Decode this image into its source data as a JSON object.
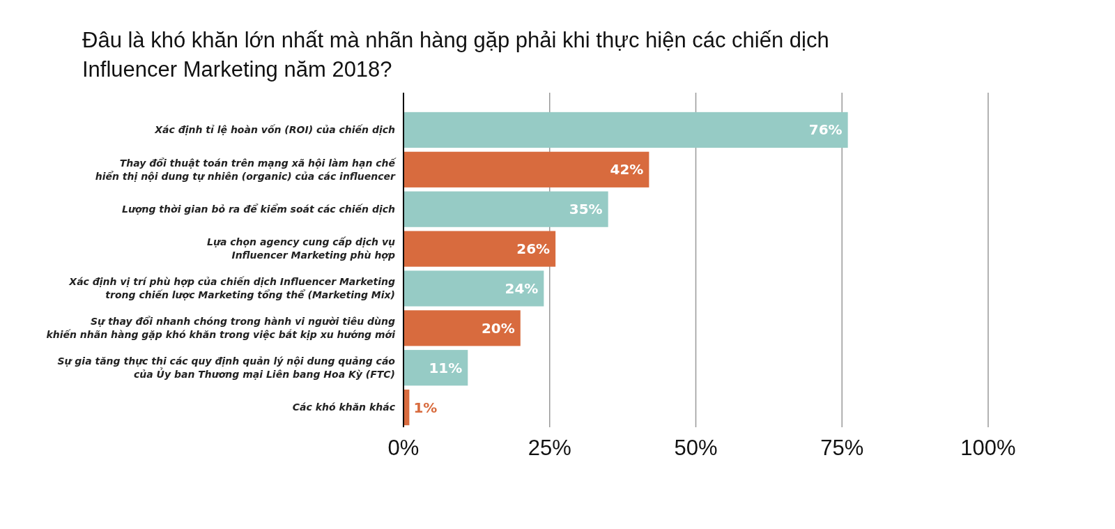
{
  "chart_data": {
    "type": "bar",
    "orientation": "horizontal",
    "title": "Đâu là khó khăn lớn nhất mà nhãn hàng gặp phải khi thực hiện các chiến dịch\nInfluencer Marketing năm 2018?",
    "categories": [
      "Xác định tỉ lệ hoàn vốn (ROI) của chiến dịch",
      "Thay đổi thuật toán trên mạng xã hội làm hạn chế\nhiển thị nội dung tự nhiên (organic) của các influencer",
      "Lượng thời gian bỏ ra để kiểm soát các chiến dịch",
      "Lựa chọn agency cung cấp dịch vụ\nInfluencer Marketing phù hợp",
      "Xác định vị trí phù hợp của chiến dịch Influencer Marketing\ntrong chiến lược Marketing tổng thể (Marketing Mix)",
      "Sự thay đổi nhanh chóng trong hành vi người tiêu dùng\nkhiến nhãn hàng gặp khó khăn trong việc bắt kịp xu hướng mới",
      "Sự gia tăng thực thi các quy định quản lý nội dung quảng cáo\ncủa Ủy ban Thương mại Liên bang Hoa Kỳ (FTC)",
      "Các khó khăn khác"
    ],
    "values": [
      76,
      42,
      35,
      26,
      24,
      20,
      11,
      1
    ],
    "value_labels": [
      "76%",
      "42%",
      "35%",
      "26%",
      "24%",
      "20%",
      "11%",
      "1%"
    ],
    "colors": [
      "#96cbc5",
      "#d86b3e",
      "#96cbc5",
      "#d86b3e",
      "#96cbc5",
      "#d86b3e",
      "#96cbc5",
      "#d86b3e"
    ],
    "xlim": [
      0,
      100
    ],
    "xticks": [
      {
        "value": 0,
        "label": "0%"
      },
      {
        "value": 25,
        "label": "25%"
      },
      {
        "value": 50,
        "label": "50%"
      },
      {
        "value": 75,
        "label": "75%"
      },
      {
        "value": 100,
        "label": "100%"
      }
    ],
    "grid": "x"
  }
}
